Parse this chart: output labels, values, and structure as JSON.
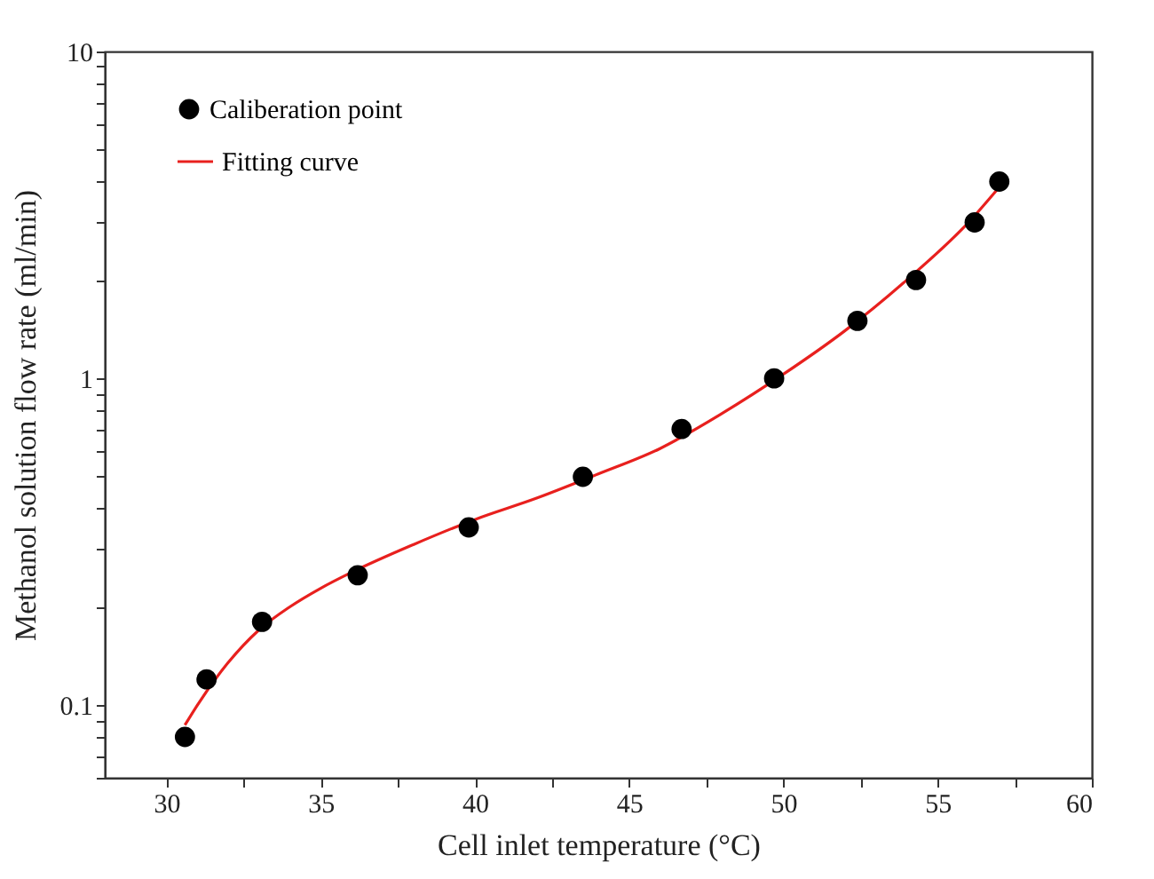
{
  "chart_data": {
    "type": "scatter",
    "xlabel": "Cell inlet temperature (°C)",
    "ylabel": "Methanol solution flow rate (ml/min)",
    "xlim": [
      28,
      60
    ],
    "ylim": [
      0.06,
      10
    ],
    "xticks": [
      30,
      {
        "value": 32.5,
        "label": null
      },
      35,
      {
        "value": 37.5,
        "label": null
      },
      40,
      {
        "value": 42.5,
        "label": null
      },
      45,
      {
        "value": 47.5,
        "label": null
      },
      50,
      {
        "value": 52.5,
        "label": null
      },
      55,
      {
        "value": 57.5,
        "label": null
      },
      60
    ],
    "yticks": [
      {
        "value": 0.06,
        "label": null
      },
      {
        "value": 0.07,
        "label": null
      },
      {
        "value": 0.08,
        "label": null
      },
      {
        "value": 0.09,
        "label": null
      },
      0.1,
      {
        "value": 0.2,
        "label": null
      },
      {
        "value": 0.3,
        "label": null
      },
      {
        "value": 0.4,
        "label": null
      },
      {
        "value": 0.5,
        "label": null
      },
      {
        "value": 0.6,
        "label": null
      },
      {
        "value": 0.7,
        "label": null
      },
      {
        "value": 0.8,
        "label": null
      },
      {
        "value": 0.9,
        "label": null
      },
      1,
      {
        "value": 2,
        "label": null
      },
      {
        "value": 3,
        "label": null
      },
      {
        "value": 4,
        "label": null
      },
      {
        "value": 5,
        "label": null
      },
      {
        "value": 6,
        "label": null
      },
      {
        "value": 7,
        "label": null
      },
      {
        "value": 8,
        "label": null
      },
      {
        "value": 9,
        "label": null
      },
      10
    ],
    "log": "y",
    "grid": false,
    "legend": "top left",
    "series": [
      {
        "name": "Caliberation point",
        "marker": "circle",
        "color": "#000000",
        "x": [
          30.6,
          31.3,
          33.1,
          36.2,
          39.8,
          43.5,
          46.7,
          49.7,
          52.4,
          54.3,
          56.2,
          57.0
        ],
        "values": [
          0.08,
          0.12,
          0.18,
          0.25,
          0.35,
          0.5,
          0.7,
          1.0,
          1.5,
          2.0,
          3.0,
          4.0
        ]
      },
      {
        "name": "Fitting curve",
        "type": "line",
        "line_style": "solid",
        "color": "#e8201e",
        "x": [
          30.6,
          31,
          32,
          33,
          34,
          35,
          36,
          38,
          40,
          42,
          44,
          46,
          48,
          50,
          52,
          54,
          56,
          57
        ],
        "values": [
          0.087,
          0.1,
          0.135,
          0.17,
          0.2,
          0.228,
          0.255,
          0.31,
          0.37,
          0.43,
          0.51,
          0.61,
          0.78,
          1.03,
          1.4,
          2.0,
          3.0,
          3.85
        ]
      }
    ]
  }
}
